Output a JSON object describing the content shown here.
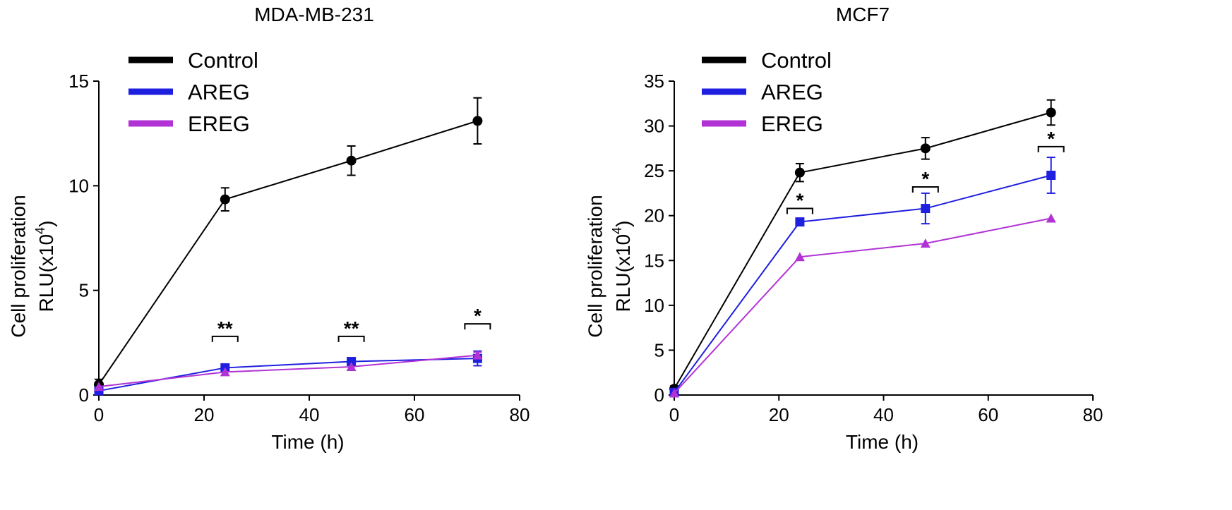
{
  "chart_data": [
    {
      "type": "line",
      "title": "MDA-MB-231",
      "xlabel": "Time (h)",
      "ylabel_line1": "Cell proliferation",
      "ylabel_line2_prefix": "RLU(x10",
      "ylabel_line2_sup": "4",
      "ylabel_line2_suffix": ")",
      "xlim": [
        0,
        80
      ],
      "ylim": [
        0,
        15
      ],
      "xticks": [
        0,
        20,
        40,
        60,
        80
      ],
      "yticks": [
        0,
        5,
        10,
        15
      ],
      "x": [
        0,
        24,
        48,
        72
      ],
      "legend_position": "top-left",
      "series": [
        {
          "name": "Control",
          "color": "#000000",
          "marker": "circle",
          "values": [
            0.5,
            9.35,
            11.2,
            13.1
          ],
          "errors": [
            0.25,
            0.55,
            0.7,
            1.1
          ]
        },
        {
          "name": "AREG",
          "color": "#1f1fe0",
          "marker": "square",
          "values": [
            0.2,
            1.3,
            1.6,
            1.75
          ],
          "errors": [
            0.1,
            0.15,
            0.15,
            0.35
          ]
        },
        {
          "name": "EREG",
          "color": "#b133d6",
          "marker": "triangle",
          "values": [
            0.4,
            1.1,
            1.35,
            1.9
          ],
          "errors": [
            0.05,
            0.1,
            0.1,
            0.15
          ]
        }
      ],
      "annotations": [
        {
          "label": "**",
          "x": 24,
          "y": 2.8
        },
        {
          "label": "**",
          "x": 48,
          "y": 2.8
        },
        {
          "label": "*",
          "x": 72,
          "y": 3.4
        }
      ]
    },
    {
      "type": "line",
      "title": "MCF7",
      "xlabel": "Time (h)",
      "ylabel_line1": "Cell proliferation",
      "ylabel_line2_prefix": "RLU(x10",
      "ylabel_line2_sup": "4",
      "ylabel_line2_suffix": ")",
      "xlim": [
        0,
        80
      ],
      "ylim": [
        0,
        35
      ],
      "xticks": [
        0,
        20,
        40,
        60,
        80
      ],
      "yticks": [
        0,
        5,
        10,
        15,
        20,
        25,
        30,
        35
      ],
      "x": [
        0,
        24,
        48,
        72
      ],
      "legend_position": "top-left",
      "series": [
        {
          "name": "Control",
          "color": "#000000",
          "marker": "circle",
          "values": [
            0.7,
            24.8,
            27.5,
            31.5
          ],
          "errors": [
            0.3,
            1.0,
            1.2,
            1.4
          ]
        },
        {
          "name": "AREG",
          "color": "#1f1fe0",
          "marker": "square",
          "values": [
            0.3,
            19.3,
            20.8,
            24.5
          ],
          "errors": [
            0.1,
            0.3,
            1.7,
            2.0
          ]
        },
        {
          "name": "EREG",
          "color": "#b133d6",
          "marker": "triangle",
          "values": [
            0.2,
            15.4,
            16.9,
            19.7
          ],
          "errors": [
            0.05,
            0.2,
            0.2,
            0.2
          ]
        }
      ],
      "annotations": [
        {
          "label": "*",
          "x": 24,
          "y": 20.8
        },
        {
          "label": "*",
          "x": 48,
          "y": 23.2
        },
        {
          "label": "*",
          "x": 72,
          "y": 27.7
        }
      ]
    }
  ]
}
